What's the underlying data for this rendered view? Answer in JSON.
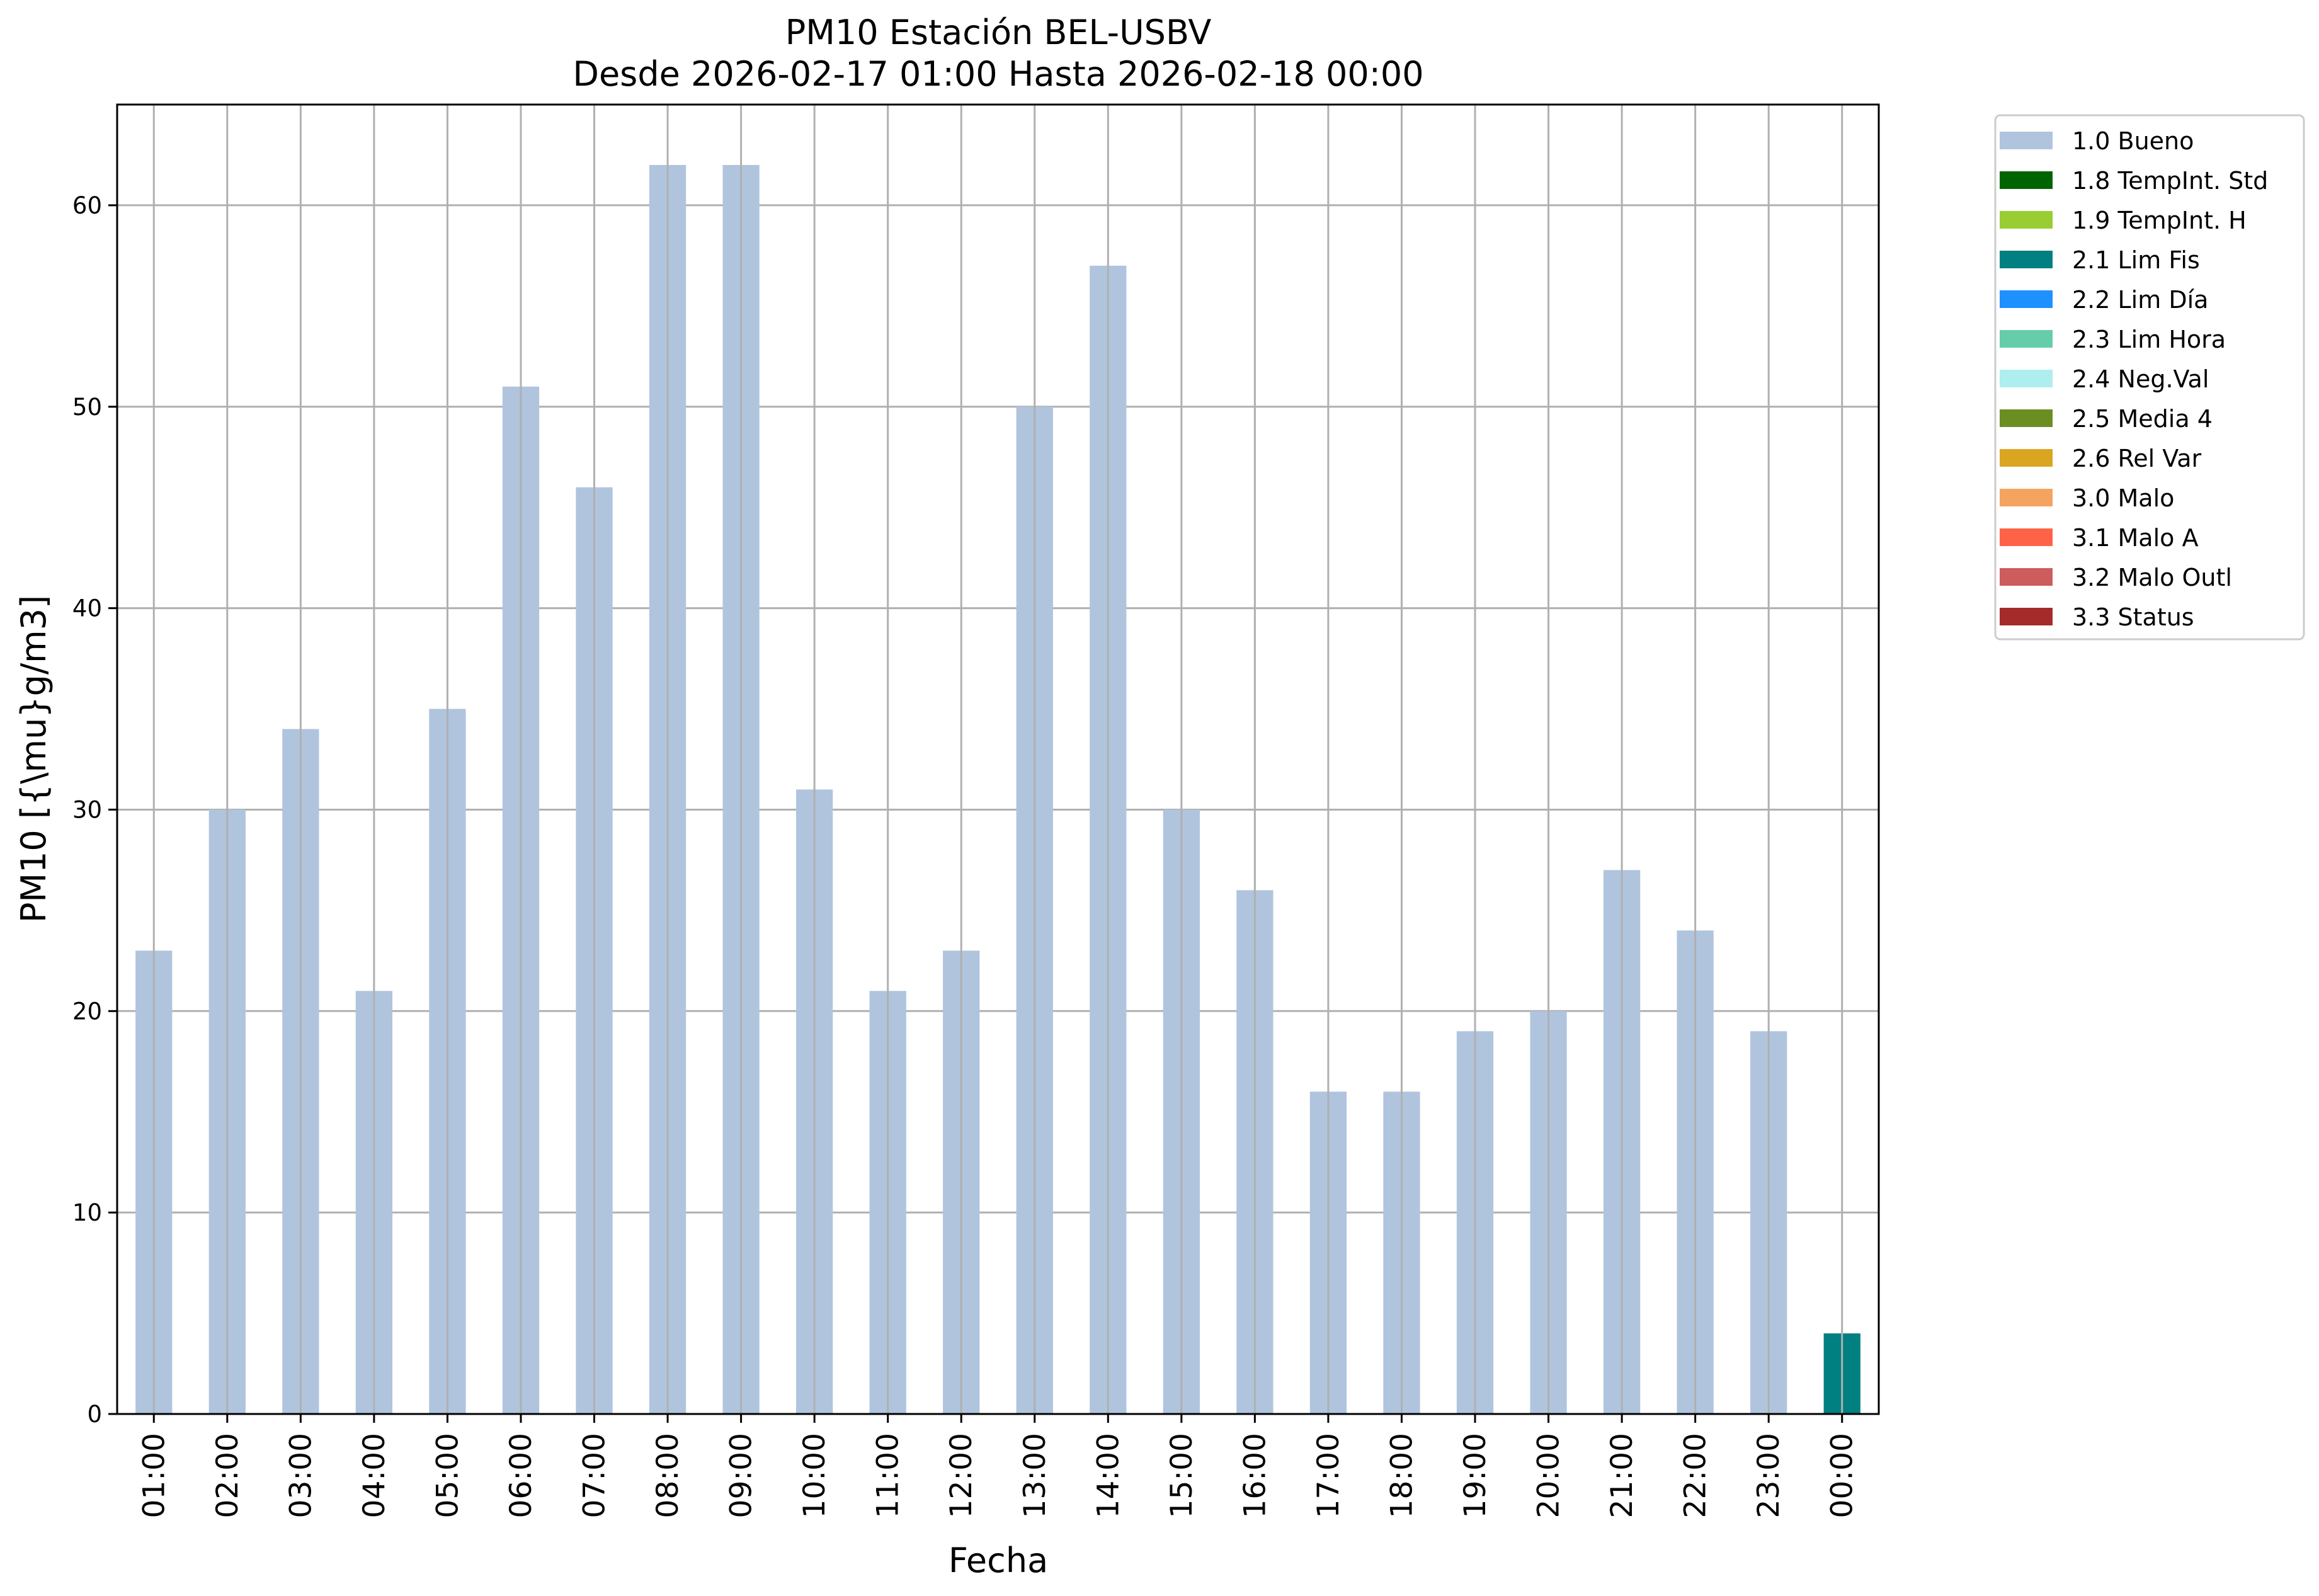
{
  "chart_data": {
    "type": "bar",
    "title": "PM10 Estación BEL-USBV",
    "subtitle": "Desde 2026-02-17 01:00 Hasta 2026-02-18 00:00",
    "xlabel": "Fecha",
    "ylabel": "PM10 [{\\mu}g/m3]",
    "ylim": [
      0,
      65
    ],
    "yticks": [
      0,
      10,
      20,
      30,
      40,
      50,
      60
    ],
    "grid": true,
    "legend_position": "outside-top-right",
    "categories": [
      "01:00",
      "02:00",
      "03:00",
      "04:00",
      "05:00",
      "06:00",
      "07:00",
      "08:00",
      "09:00",
      "10:00",
      "11:00",
      "12:00",
      "13:00",
      "14:00",
      "15:00",
      "16:00",
      "17:00",
      "18:00",
      "19:00",
      "20:00",
      "21:00",
      "22:00",
      "23:00",
      "00:00"
    ],
    "values": [
      23,
      30,
      34,
      21,
      35,
      51,
      46,
      62,
      62,
      31,
      21,
      23,
      50,
      57,
      30,
      26,
      16,
      16,
      19,
      20,
      27,
      24,
      19,
      4
    ],
    "flags": [
      "1.0 Bueno",
      "1.0 Bueno",
      "1.0 Bueno",
      "1.0 Bueno",
      "1.0 Bueno",
      "1.0 Bueno",
      "1.0 Bueno",
      "1.0 Bueno",
      "1.0 Bueno",
      "1.0 Bueno",
      "1.0 Bueno",
      "1.0 Bueno",
      "1.0 Bueno",
      "1.0 Bueno",
      "1.0 Bueno",
      "1.0 Bueno",
      "1.0 Bueno",
      "1.0 Bueno",
      "1.0 Bueno",
      "1.0 Bueno",
      "1.0 Bueno",
      "1.0 Bueno",
      "1.0 Bueno",
      "2.1 Lim Fis"
    ],
    "legend": [
      {
        "label": "1.0 Bueno",
        "color": "#b0c4de"
      },
      {
        "label": "1.8 TempInt. Std",
        "color": "#006400"
      },
      {
        "label": "1.9 TempInt. H",
        "color": "#9acd32"
      },
      {
        "label": "2.1 Lim Fis",
        "color": "#008080"
      },
      {
        "label": "2.2 Lim Día",
        "color": "#1e90ff"
      },
      {
        "label": "2.3 Lim Hora",
        "color": "#66cdaa"
      },
      {
        "label": "2.4 Neg.Val",
        "color": "#afeeee"
      },
      {
        "label": "2.5 Media 4",
        "color": "#6b8e23"
      },
      {
        "label": "2.6 Rel Var",
        "color": "#daa520"
      },
      {
        "label": "3.0 Malo",
        "color": "#f4a460"
      },
      {
        "label": "3.1 Malo A",
        "color": "#ff6347"
      },
      {
        "label": "3.2 Malo Outl",
        "color": "#cd5c5c"
      },
      {
        "label": "3.3 Status",
        "color": "#a52a2a"
      }
    ]
  }
}
